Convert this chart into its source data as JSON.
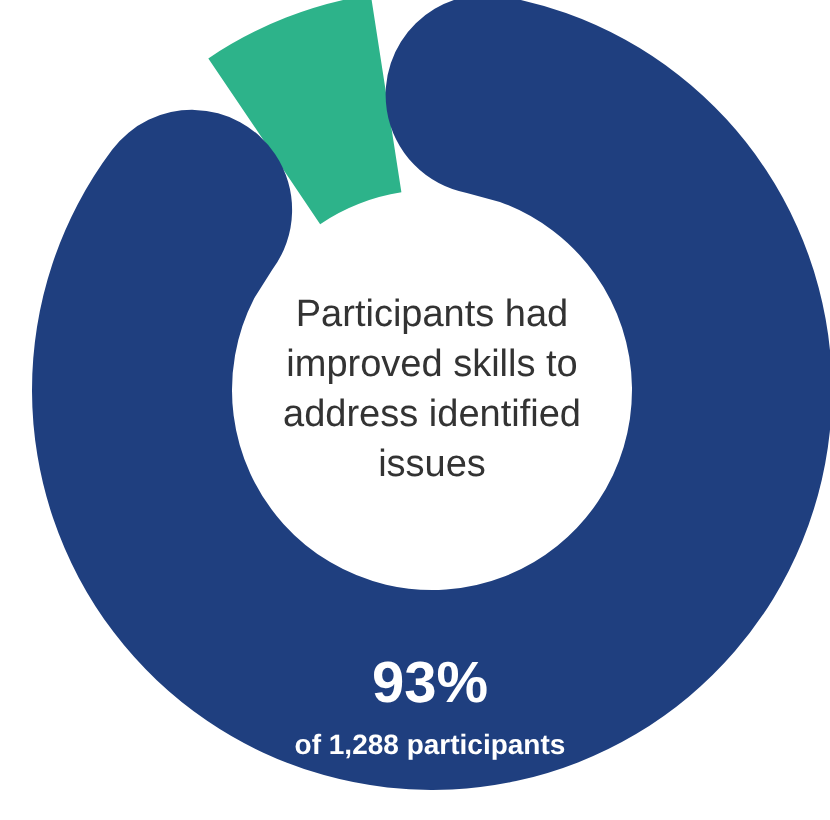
{
  "chart_data": {
    "type": "donut",
    "title": "Participants had improved skills to address identified issues",
    "categories": [
      null,
      null
    ],
    "values": [
      7,
      93
    ],
    "colors": [
      "#2db38a",
      "#1f3f7f"
    ],
    "value_labels": [
      null,
      "93%"
    ],
    "annotations": [
      "of 1,288 participants"
    ],
    "legend": false
  }
}
